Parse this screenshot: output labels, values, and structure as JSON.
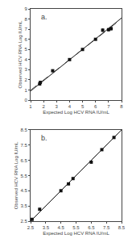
{
  "chart_data": [
    {
      "type": "scatter",
      "xlabel": "Expected Log HCV RNA IU/mL",
      "ylabel": "Observed HCV RNA Log IU/mL",
      "annotations": [
        "a."
      ],
      "xlim": [
        1.0,
        8.0
      ],
      "ylim": [
        0.0,
        9.0
      ],
      "xticks": [
        1,
        2,
        3,
        4,
        5,
        6,
        7,
        8
      ],
      "yticks": [
        0,
        1,
        2,
        3,
        4,
        5,
        6,
        7,
        8,
        9
      ],
      "grid": false,
      "series": [
        {
          "type": "line",
          "line_style": "dashed",
          "color": "#777777",
          "x": [
            1.0,
            8.0
          ],
          "values": [
            1.0,
            8.0
          ]
        },
        {
          "type": "line",
          "line_style": "solid",
          "color": "#111111",
          "x": [
            1.0,
            8.0
          ],
          "values": [
            0.9,
            8.1
          ]
        },
        {
          "type": "scatter",
          "marker": "square",
          "color": "#111111",
          "x": [
            1.7,
            1.75,
            2.7,
            4.0,
            5.0,
            6.0,
            6.55,
            7.0,
            7.2
          ],
          "values": [
            1.6,
            1.75,
            2.9,
            4.0,
            5.0,
            6.0,
            6.9,
            6.95,
            7.05
          ],
          "xerr": [
            0.05,
            0.05,
            0.05,
            0.04,
            0.04,
            0.04,
            0.06,
            0.06,
            0.06
          ],
          "yerr": [
            0.12,
            0.1,
            0.09,
            0.06,
            0.05,
            0.05,
            0.12,
            0.12,
            0.12
          ]
        }
      ]
    },
    {
      "type": "scatter",
      "xlabel": "Expected Log HCV RNA IU/mL",
      "ylabel": "Observed HCV RNA Log IU/mL",
      "annotations": [
        "b."
      ],
      "xlim": [
        2.5,
        8.5
      ],
      "ylim": [
        2.5,
        8.5
      ],
      "xticks": [
        2.5,
        3.5,
        4.5,
        5.5,
        6.5,
        7.5,
        8.5
      ],
      "yticks": [
        2.5,
        3.5,
        4.5,
        5.5,
        6.5,
        7.5,
        8.5
      ],
      "grid": false,
      "series": [
        {
          "type": "line",
          "line_style": "dashed",
          "color": "#777777",
          "x": [
            2.5,
            8.5
          ],
          "values": [
            2.5,
            8.5
          ]
        },
        {
          "type": "line",
          "line_style": "solid",
          "color": "#111111",
          "x": [
            2.5,
            8.5
          ],
          "values": [
            2.5,
            8.5
          ]
        },
        {
          "type": "scatter",
          "marker": "square",
          "color": "#111111",
          "x": [
            2.6,
            3.1,
            4.5,
            5.0,
            5.3,
            6.5,
            7.2,
            8.0
          ],
          "values": [
            2.62,
            3.28,
            4.5,
            4.95,
            5.3,
            6.38,
            7.2,
            8.0
          ],
          "xerr": [
            0.03,
            0.03,
            0.03,
            0.03,
            0.03,
            0.03,
            0.03,
            0.03
          ],
          "yerr": [
            0.05,
            0.06,
            0.04,
            0.04,
            0.04,
            0.05,
            0.05,
            0.05
          ]
        }
      ]
    }
  ]
}
